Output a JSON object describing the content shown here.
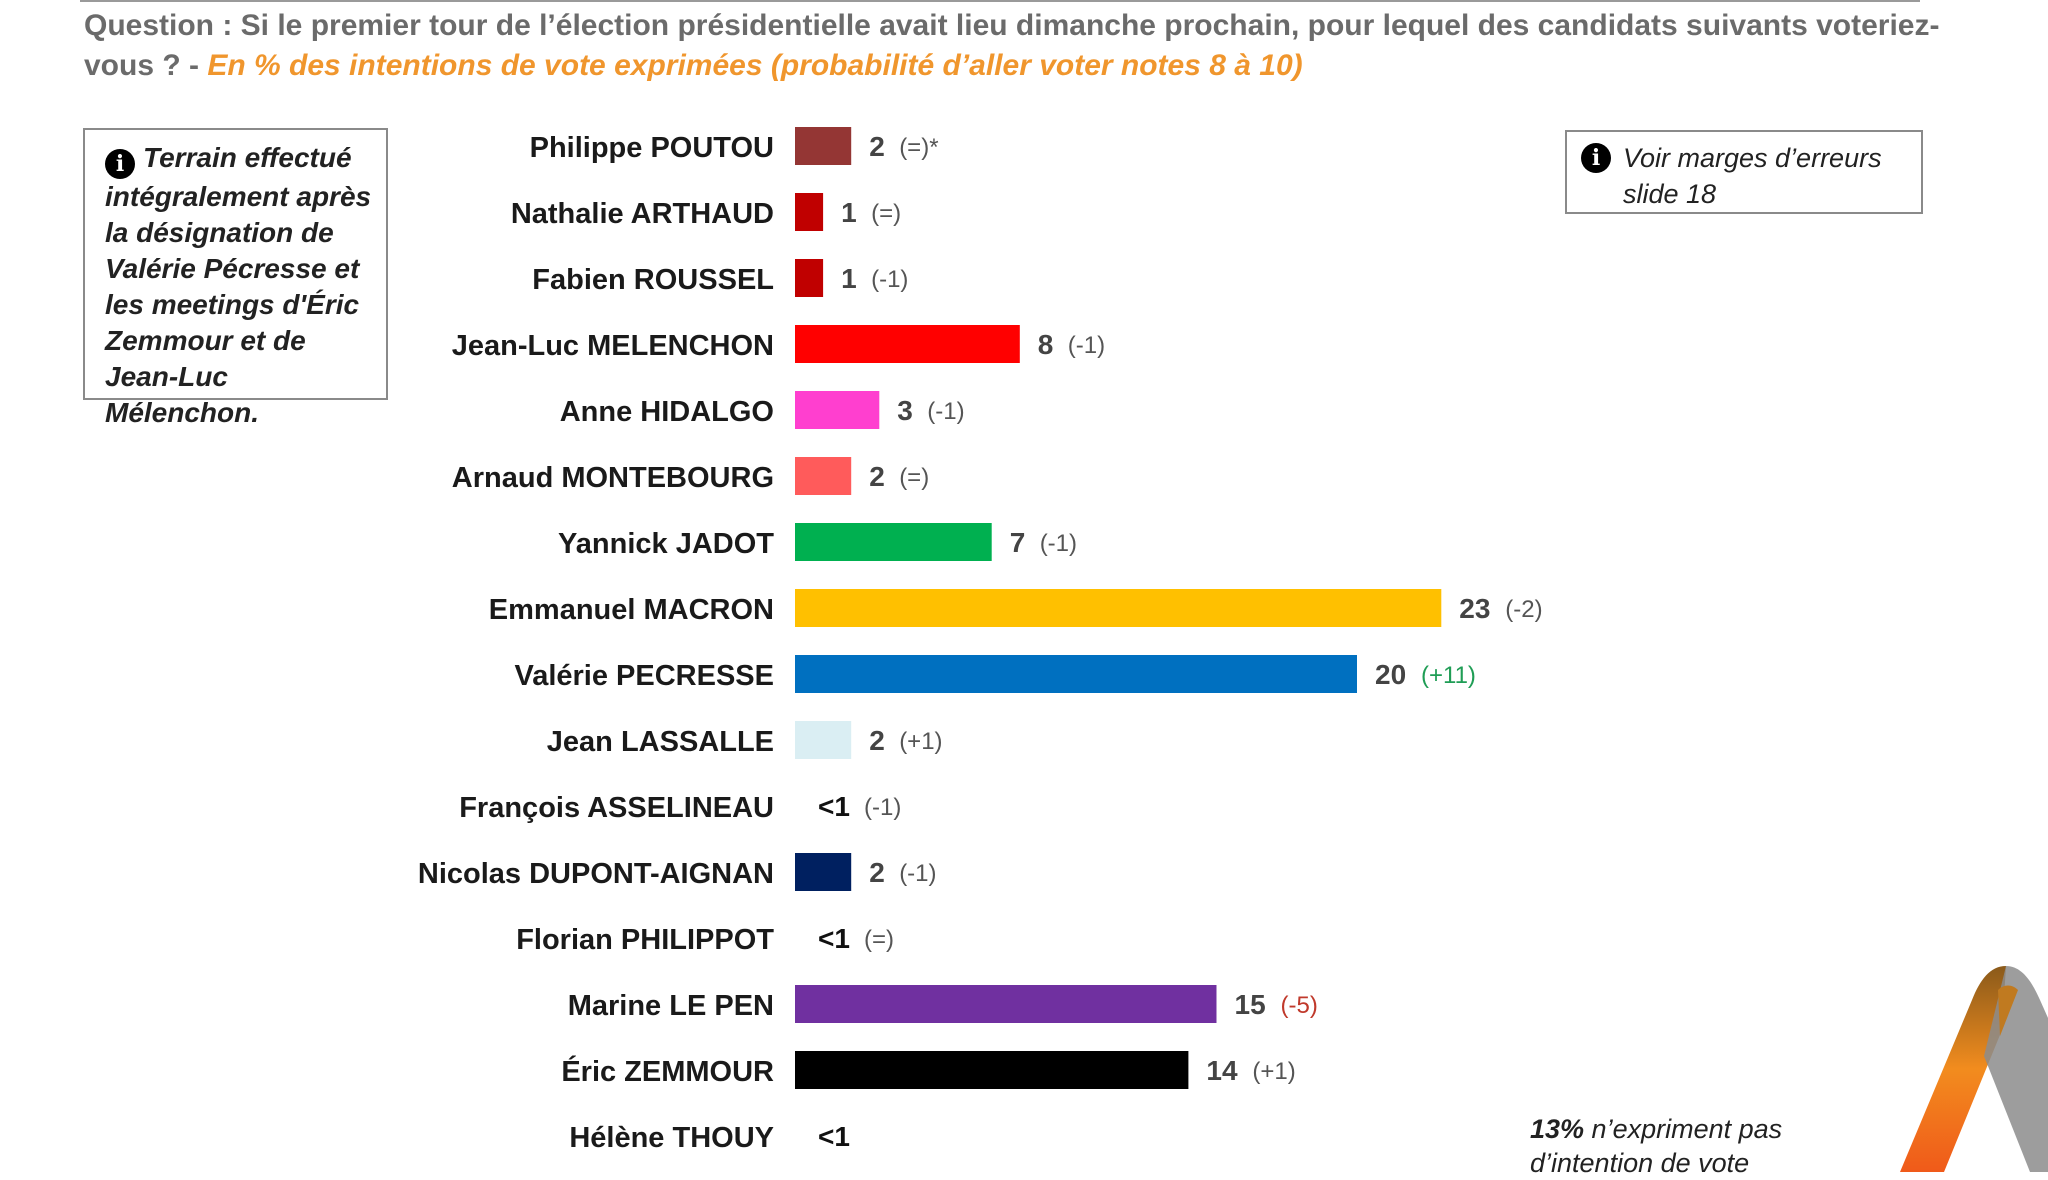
{
  "header": {
    "question": "Question : Si le premier tour de l’élection présidentielle avait lieu dimanche prochain, pour lequel des candidats suivants voteriez-vous ? - ",
    "subtitle": "En % des intentions de vote exprimées (probabilité d’aller voter notes 8 à 10)"
  },
  "note_box": {
    "icon": "info-icon",
    "text": "Terrain effectué intégralement après la désignation de Valérie Pécresse et les meetings d'Éric Zemmour et de Jean-Luc Mélenchon."
  },
  "margin_box": {
    "icon": "info-icon",
    "text": "Voir marges d’erreurs slide 18"
  },
  "footnote": {
    "pct": "13%",
    "text": " n’expriment pas d’intention de vote"
  },
  "logo": {
    "icon": "company-logo-icon"
  },
  "chart_data": {
    "type": "bar",
    "orientation": "horizontal",
    "title": "",
    "xlabel": "",
    "ylabel": "",
    "categories": [
      "Philippe POUTOU",
      "Nathalie ARTHAUD",
      "Fabien ROUSSEL",
      "Jean-Luc MELENCHON",
      "Anne HIDALGO",
      "Arnaud MONTEBOURG",
      "Yannick JADOT",
      "Emmanuel MACRON",
      "Valérie PECRESSE",
      "Jean LASSALLE",
      "François ASSELINEAU",
      "Nicolas DUPONT-AIGNAN",
      "Florian PHILIPPOT",
      "Marine LE PEN",
      "Éric ZEMMOUR",
      "Hélène THOUY"
    ],
    "values": [
      2,
      1,
      1,
      8,
      3,
      2,
      7,
      23,
      20,
      2,
      0,
      2,
      0,
      15,
      14,
      0
    ],
    "value_labels": [
      "2",
      "1",
      "1",
      "8",
      "3",
      "2",
      "7",
      "23",
      "20",
      "2",
      "<1",
      "2",
      "<1",
      "15",
      "14",
      "<1"
    ],
    "changes": [
      "(=)*",
      "(=)",
      "(-1)",
      "(-1)",
      "(-1)",
      "(=)",
      "(-1)",
      "(-2)",
      "(+11)",
      "(+1)",
      "(-1)",
      "(-1)",
      "(=)",
      "(-5)",
      "(+1)",
      ""
    ],
    "change_colors": [
      "#555555",
      "#555555",
      "#555555",
      "#555555",
      "#555555",
      "#555555",
      "#555555",
      "#555555",
      "#1f9d55",
      "#555555",
      "#555555",
      "#555555",
      "#555555",
      "#c0392b",
      "#555555",
      "#555555"
    ],
    "colors": [
      "#943634",
      "#c00000",
      "#c00000",
      "#ff0000",
      "#ff3fcf",
      "#ff5b5b",
      "#00b050",
      "#ffc000",
      "#0070c0",
      "#daeef3",
      "#cccccc",
      "#002060",
      "#cccccc",
      "#7030a0",
      "#000000",
      "#cccccc"
    ],
    "grid": false,
    "legend": "none"
  }
}
